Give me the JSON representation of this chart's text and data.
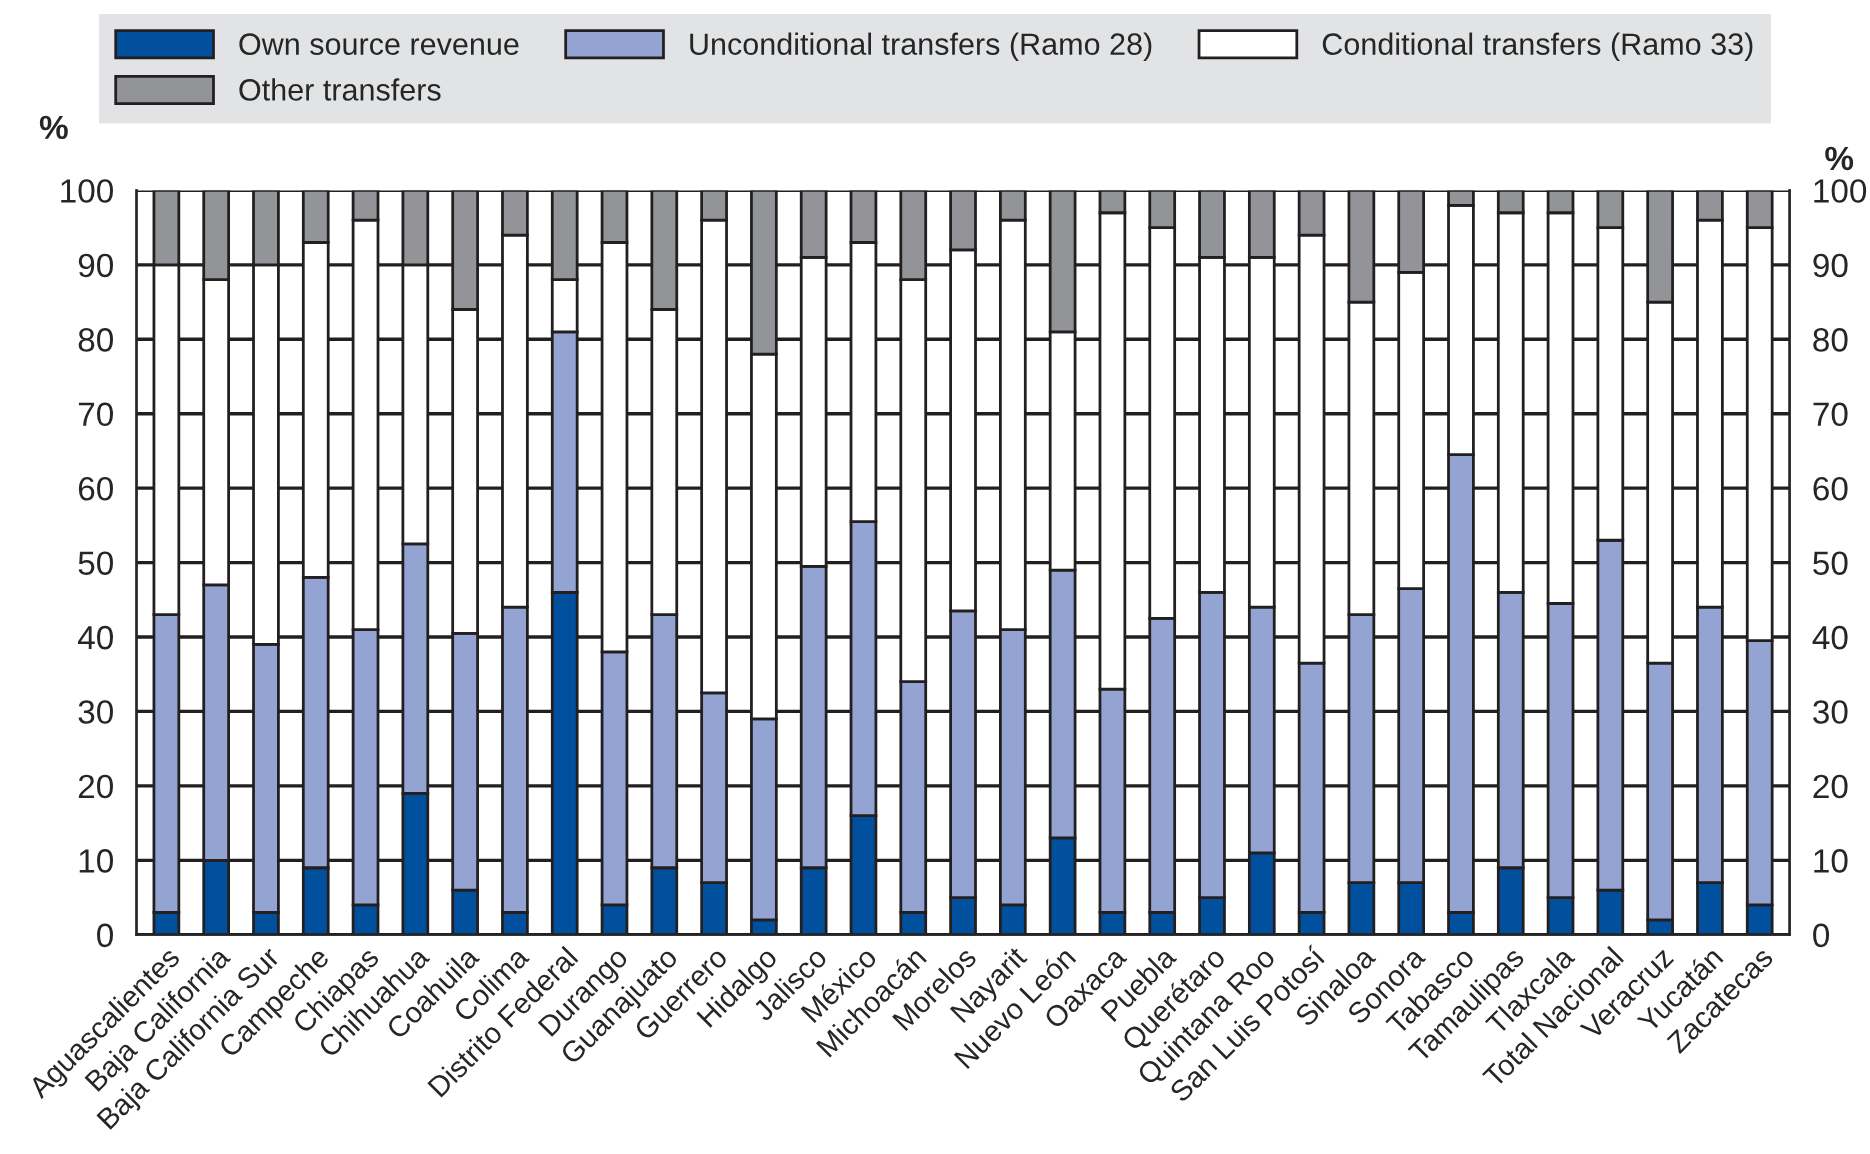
{
  "chart_data": {
    "type": "bar",
    "stacked": true,
    "ylabel": "%",
    "y2label": "%",
    "categories": [
      "Aguascalientes",
      "Baja California",
      "Baja California Sur",
      "Campeche",
      "Chiapas",
      "Chihuahua",
      "Coahuila",
      "Colima",
      "Distrito Federal",
      "Durango",
      "Guanajuato",
      "Guerrero",
      "Hidalgo",
      "Jalisco",
      "México",
      "Michoacán",
      "Morelos",
      "Nayarit",
      "Nuevo León",
      "Oaxaca",
      "Puebla",
      "Querétaro",
      "Quintana Roo",
      "San Luis Potosí",
      "Sinaloa",
      "Sonora",
      "Tabasco",
      "Tamaulipas",
      "Tlaxcala",
      "Total Nacional",
      "Veracruz",
      "Yucatán",
      "Zacatecas"
    ],
    "series": [
      {
        "name": "Own source revenue",
        "color": "#00509e",
        "values": [
          3,
          10,
          3,
          9,
          4,
          19,
          6,
          3,
          46,
          4,
          9,
          7,
          2,
          9,
          16,
          3,
          5,
          4,
          13,
          3,
          3,
          5,
          11,
          3,
          7,
          7,
          3,
          9,
          5,
          6,
          2,
          7,
          4
        ]
      },
      {
        "name": "Unconditional transfers (Ramo 28)",
        "color": "#94a4d2",
        "values": [
          40,
          37,
          36,
          39,
          37,
          33.5,
          34.5,
          41,
          35,
          34,
          34,
          25.5,
          27,
          40.5,
          39.5,
          31,
          38.5,
          37,
          36,
          30,
          39.5,
          41,
          33,
          33.5,
          36,
          39.5,
          61.5,
          37,
          39.5,
          47,
          34.5,
          37,
          35.5
        ]
      },
      {
        "name": "Conditional transfers (Ramo 33)",
        "color": "#ffffff",
        "values": [
          47,
          41,
          51,
          45,
          55,
          37.5,
          43.5,
          50,
          7,
          55,
          41,
          63.5,
          49,
          41.5,
          37.5,
          54,
          48.5,
          55,
          32,
          64,
          52.5,
          45,
          47,
          57.5,
          42,
          42.5,
          33.5,
          51,
          52.5,
          42,
          48.5,
          52,
          55.5
        ]
      },
      {
        "name": "Other transfers",
        "color": "#929497",
        "values": [
          10,
          12,
          10,
          7,
          4,
          10,
          16,
          6,
          12,
          7,
          16,
          4,
          22,
          9,
          7,
          12,
          8,
          4,
          19,
          3,
          5,
          9,
          9,
          6,
          15,
          11,
          2,
          3,
          3,
          5,
          15,
          4,
          5
        ]
      }
    ],
    "ylim": [
      0,
      100
    ],
    "yticks": [
      0,
      10,
      20,
      30,
      40,
      50,
      60,
      70,
      80,
      90,
      100
    ],
    "y2lim": [
      0,
      100
    ],
    "y2ticks": [
      0,
      10,
      20,
      30,
      40,
      50,
      60,
      70,
      80,
      90,
      100
    ],
    "grid": "y",
    "legend": "top"
  }
}
